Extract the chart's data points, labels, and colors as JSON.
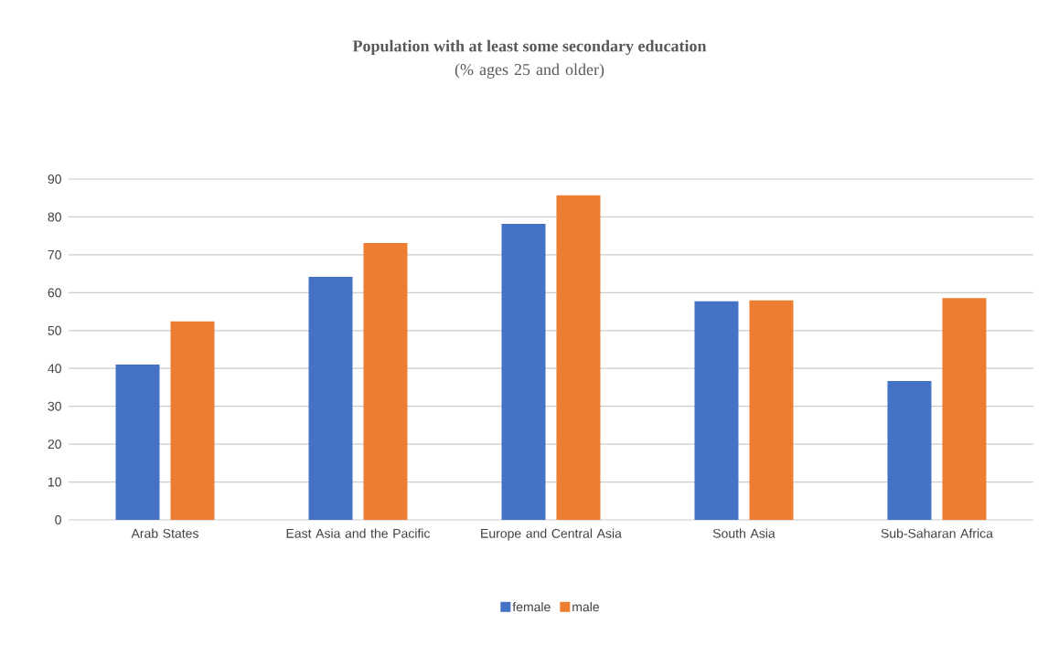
{
  "chart_data": {
    "type": "bar",
    "title": "Population with at least some secondary education",
    "subtitle": "(% ages 25 and older)",
    "categories": [
      "Arab States",
      "East Asia and the Pacific",
      "Europe and Central Asia",
      "South Asia",
      "Sub-Saharan Africa"
    ],
    "series": [
      {
        "name": "female",
        "color": "#4472c4",
        "values": [
          41.0,
          64.2,
          78.2,
          57.7,
          36.7
        ]
      },
      {
        "name": "male",
        "color": "#ed7d31",
        "values": [
          52.4,
          73.1,
          85.7,
          58.0,
          58.6
        ]
      }
    ],
    "ylim": [
      0,
      90
    ],
    "yticks": [
      0,
      10,
      20,
      30,
      40,
      50,
      60,
      70,
      80,
      90
    ],
    "grid": "y",
    "legend": "bottom"
  }
}
